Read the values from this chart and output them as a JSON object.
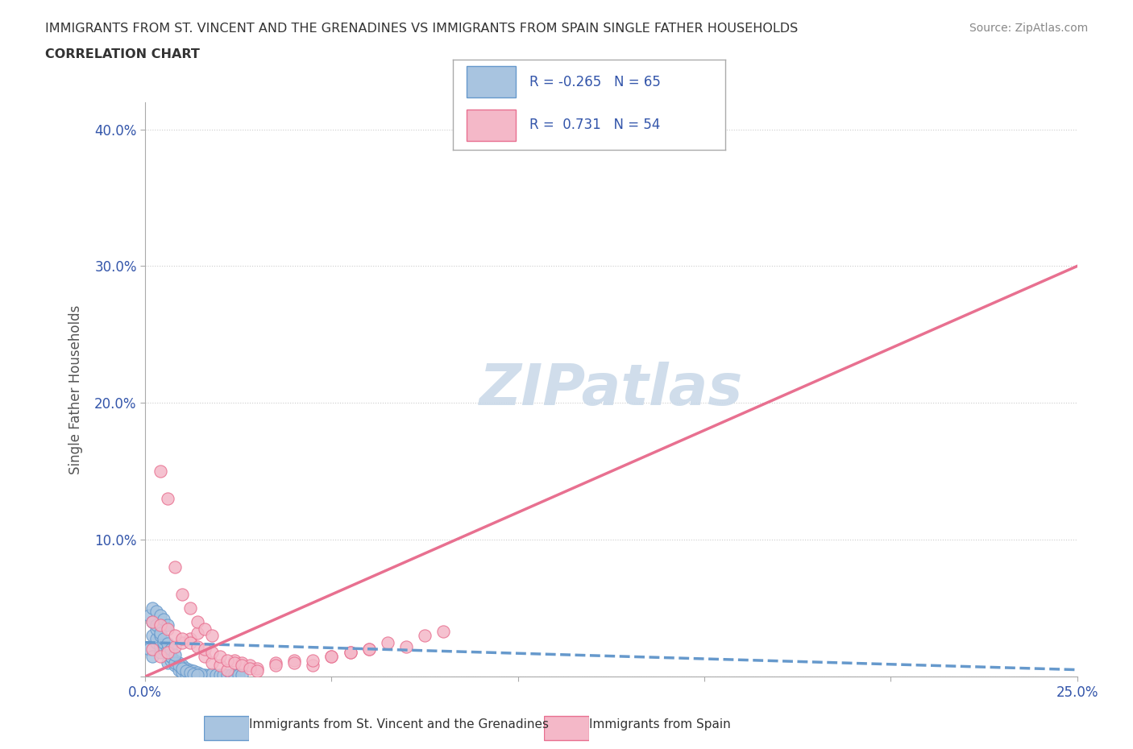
{
  "title_line1": "IMMIGRANTS FROM ST. VINCENT AND THE GRENADINES VS IMMIGRANTS FROM SPAIN SINGLE FATHER HOUSEHOLDS",
  "title_line2": "CORRELATION CHART",
  "source_text": "Source: ZipAtlas.com",
  "xlabel": "",
  "ylabel": "Single Father Households",
  "watermark": "ZIPatlas",
  "xlim": [
    0.0,
    0.25
  ],
  "ylim": [
    0.0,
    0.42
  ],
  "xticks": [
    0.0,
    0.05,
    0.1,
    0.15,
    0.2,
    0.25
  ],
  "yticks": [
    0.0,
    0.1,
    0.2,
    0.3,
    0.4
  ],
  "xtick_labels": [
    "0.0%",
    "",
    "",
    "",
    "",
    "25.0%"
  ],
  "ytick_labels": [
    "",
    "10.0%",
    "20.0%",
    "30.0%",
    "40.0%"
  ],
  "series": [
    {
      "name": "Immigrants from St. Vincent and the Grenadines",
      "color": "#a8c4e0",
      "edge_color": "#6699cc",
      "R": -0.265,
      "N": 65,
      "trend_color": "#6699cc",
      "trend_style": "--",
      "scatter_x": [
        0.001,
        0.002,
        0.003,
        0.004,
        0.005,
        0.006,
        0.007,
        0.008,
        0.009,
        0.01,
        0.011,
        0.012,
        0.013,
        0.014,
        0.015,
        0.016,
        0.017,
        0.018,
        0.019,
        0.02,
        0.021,
        0.022,
        0.023,
        0.024,
        0.025,
        0.026,
        0.002,
        0.003,
        0.004,
        0.005,
        0.006,
        0.007,
        0.008,
        0.009,
        0.01,
        0.011,
        0.012,
        0.013,
        0.014,
        0.015,
        0.001,
        0.002,
        0.003,
        0.004,
        0.005,
        0.006,
        0.007,
        0.008,
        0.009,
        0.01,
        0.011,
        0.012,
        0.013,
        0.014,
        0.003,
        0.004,
        0.005,
        0.006,
        0.007,
        0.008,
        0.002,
        0.003,
        0.004,
        0.005,
        0.006
      ],
      "scatter_y": [
        0.02,
        0.015,
        0.025,
        0.018,
        0.022,
        0.01,
        0.012,
        0.008,
        0.005,
        0.003,
        0.002,
        0.001,
        0.001,
        0.002,
        0.001,
        0.001,
        0.001,
        0.002,
        0.001,
        0.001,
        0.001,
        0.001,
        0.001,
        0.001,
        0.001,
        0.001,
        0.03,
        0.028,
        0.022,
        0.02,
        0.018,
        0.015,
        0.012,
        0.01,
        0.008,
        0.006,
        0.005,
        0.004,
        0.003,
        0.002,
        0.045,
        0.04,
        0.035,
        0.03,
        0.025,
        0.02,
        0.015,
        0.01,
        0.008,
        0.006,
        0.004,
        0.003,
        0.002,
        0.001,
        0.038,
        0.032,
        0.028,
        0.024,
        0.02,
        0.016,
        0.05,
        0.048,
        0.045,
        0.042,
        0.038
      ],
      "trend_x": [
        0.0,
        0.25
      ],
      "trend_y": [
        0.025,
        0.005
      ]
    },
    {
      "name": "Immigrants from Spain",
      "color": "#f4b8c8",
      "edge_color": "#e87090",
      "R": 0.731,
      "N": 54,
      "trend_color": "#e87090",
      "trend_style": "-",
      "scatter_x": [
        0.002,
        0.004,
        0.006,
        0.008,
        0.01,
        0.012,
        0.014,
        0.016,
        0.018,
        0.02,
        0.022,
        0.024,
        0.026,
        0.028,
        0.03,
        0.035,
        0.04,
        0.045,
        0.05,
        0.055,
        0.06,
        0.065,
        0.07,
        0.075,
        0.08,
        0.002,
        0.004,
        0.006,
        0.008,
        0.01,
        0.012,
        0.014,
        0.016,
        0.018,
        0.02,
        0.022,
        0.024,
        0.026,
        0.028,
        0.03,
        0.035,
        0.04,
        0.045,
        0.05,
        0.055,
        0.06,
        0.004,
        0.006,
        0.008,
        0.01,
        0.012,
        0.014,
        0.016,
        0.018
      ],
      "scatter_y": [
        0.02,
        0.015,
        0.018,
        0.022,
        0.025,
        0.028,
        0.032,
        0.015,
        0.01,
        0.008,
        0.005,
        0.012,
        0.01,
        0.008,
        0.006,
        0.01,
        0.012,
        0.008,
        0.015,
        0.018,
        0.02,
        0.025,
        0.022,
        0.03,
        0.033,
        0.04,
        0.038,
        0.035,
        0.03,
        0.028,
        0.025,
        0.022,
        0.02,
        0.018,
        0.015,
        0.012,
        0.01,
        0.008,
        0.006,
        0.004,
        0.008,
        0.01,
        0.012,
        0.015,
        0.018,
        0.02,
        0.15,
        0.13,
        0.08,
        0.06,
        0.05,
        0.04,
        0.035,
        0.03
      ],
      "trend_x": [
        0.0,
        0.25
      ],
      "trend_y": [
        0.0,
        0.3
      ]
    }
  ],
  "legend_r_color": "#3355aa",
  "title_color": "#333333",
  "axis_tick_color": "#3355aa",
  "grid_color": "#cccccc",
  "background_color": "#ffffff",
  "watermark_color": "#c8d8e8"
}
